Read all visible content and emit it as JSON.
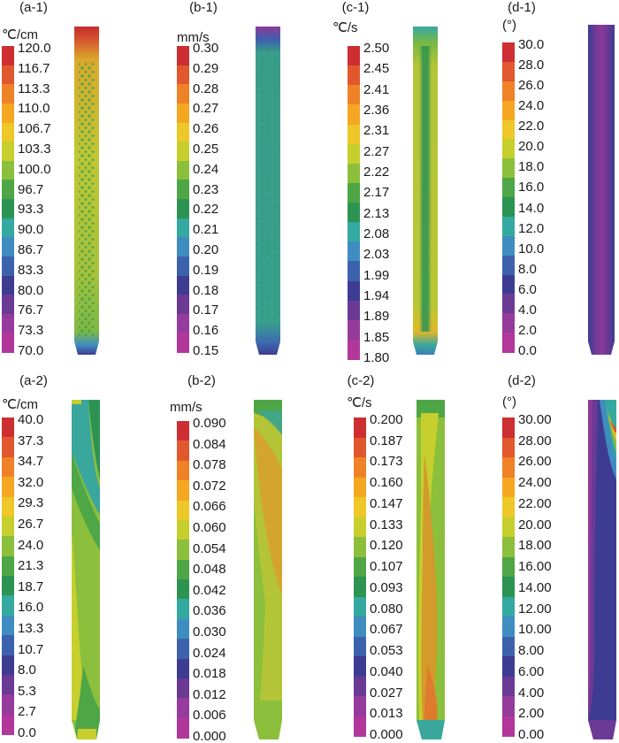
{
  "colors": {
    "colorbar": [
      "#cc2e32",
      "#e2582e",
      "#ef8127",
      "#f5a722",
      "#eec728",
      "#c6cf2d",
      "#8cbf3c",
      "#4fa646",
      "#2d9352",
      "#34a9a0",
      "#3f8dc0",
      "#3d62ad",
      "#3d3c92",
      "#6a3a95",
      "#953b9c",
      "#b1379a"
    ]
  },
  "panels": [
    {
      "id": "a-1",
      "label": "(a-1)",
      "unit": "℃/cm",
      "ticks": [
        "120.0",
        "116.7",
        "113.3",
        "110.0",
        "106.7",
        "103.3",
        "100.0",
        "96.7",
        "93.3",
        "90.0",
        "86.7",
        "83.3",
        "80.0",
        "76.7",
        "73.3",
        "70.0"
      ],
      "field": "grad1"
    },
    {
      "id": "b-1",
      "label": "(b-1)",
      "unit": "mm/s",
      "ticks": [
        "0.30",
        "0.29",
        "0.28",
        "0.27",
        "0.26",
        "0.25",
        "0.24",
        "0.23",
        "0.22",
        "0.21",
        "0.20",
        "0.19",
        "0.18",
        "0.17",
        "0.16",
        "0.15"
      ],
      "field": "vel1"
    },
    {
      "id": "c-1",
      "label": "(c-1)",
      "unit": "℃/s",
      "ticks": [
        "2.50",
        "2.45",
        "2.41",
        "2.36",
        "2.31",
        "2.27",
        "2.22",
        "2.17",
        "2.13",
        "2.08",
        "2.03",
        "1.99",
        "1.94",
        "1.89",
        "1.85",
        "1.80"
      ],
      "field": "rate1"
    },
    {
      "id": "d-1",
      "label": "(d-1)",
      "unit": "(°)",
      "ticks": [
        "30.0",
        "28.0",
        "26.0",
        "24.0",
        "22.0",
        "20.0",
        "18.0",
        "16.0",
        "14.0",
        "12.0",
        "10.0",
        "8.0",
        "6.0",
        "4.0",
        "2.0",
        "0.0"
      ],
      "field": "ang1"
    },
    {
      "id": "a-2",
      "label": "(a-2)",
      "unit": "℃/cm",
      "ticks": [
        "40.0",
        "37.3",
        "34.7",
        "32.0",
        "29.3",
        "26.7",
        "24.0",
        "21.3",
        "18.7",
        "16.0",
        "13.3",
        "10.7",
        "8.0",
        "5.3",
        "2.7",
        "0.0"
      ],
      "field": "grad2"
    },
    {
      "id": "b-2",
      "label": "(b-2)",
      "unit": "mm/s",
      "ticks": [
        "0.090",
        "0.084",
        "0.078",
        "0.072",
        "0.066",
        "0.060",
        "0.054",
        "0.048",
        "0.042",
        "0.036",
        "0.030",
        "0.024",
        "0.018",
        "0.012",
        "0.006",
        "0.000"
      ],
      "field": "vel2"
    },
    {
      "id": "c-2",
      "label": "(c-2)",
      "unit": "℃/s",
      "ticks": [
        "0.200",
        "0.187",
        "0.173",
        "0.160",
        "0.147",
        "0.133",
        "0.120",
        "0.107",
        "0.093",
        "0.080",
        "0.067",
        "0.053",
        "0.040",
        "0.027",
        "0.013",
        "0.000"
      ],
      "field": "rate2"
    },
    {
      "id": "d-2",
      "label": "(d-2)",
      "unit": "(°)",
      "ticks": [
        "30.00",
        "28.00",
        "26.00",
        "24.00",
        "22.00",
        "20.00",
        "18.00",
        "16.00",
        "14.00",
        "12.00",
        "10.00",
        "8.00",
        "6.00",
        "4.00",
        "2.00",
        "0.00"
      ],
      "field": "ang2"
    }
  ]
}
